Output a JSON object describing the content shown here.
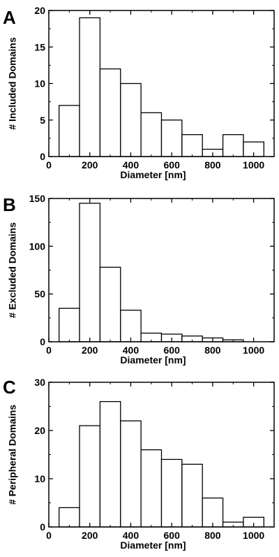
{
  "chart_data": [
    {
      "type": "bar",
      "panel": "A",
      "xlabel": "Diameter [nm]",
      "ylabel": "# Included Domains",
      "xlim": [
        0,
        1100
      ],
      "ylim": [
        0,
        20
      ],
      "xticks": [
        0,
        200,
        400,
        600,
        800,
        1000
      ],
      "yticks": [
        0,
        5,
        10,
        15,
        20
      ],
      "bin_edges": [
        50,
        150,
        250,
        350,
        450,
        550,
        650,
        750,
        850,
        950,
        1050
      ],
      "values": [
        7,
        19,
        12,
        10,
        6,
        5,
        3,
        1,
        3,
        2
      ],
      "grid": false
    },
    {
      "type": "bar",
      "panel": "B",
      "xlabel": "Diameter [nm]",
      "ylabel": "# Excluded Domains",
      "xlim": [
        0,
        1100
      ],
      "ylim": [
        0,
        150
      ],
      "xticks": [
        0,
        200,
        400,
        600,
        800,
        1000
      ],
      "yticks": [
        0,
        50,
        100,
        150
      ],
      "bin_edges": [
        50,
        150,
        250,
        350,
        450,
        550,
        650,
        750,
        850,
        950,
        1050
      ],
      "values": [
        35,
        145,
        78,
        33,
        9,
        8,
        6,
        4,
        2,
        0
      ],
      "grid": false
    },
    {
      "type": "bar",
      "panel": "C",
      "xlabel": "Diameter [nm]",
      "ylabel": "# Peripheral Domains",
      "xlim": [
        0,
        1100
      ],
      "ylim": [
        0,
        30
      ],
      "xticks": [
        0,
        200,
        400,
        600,
        800,
        1000
      ],
      "yticks": [
        0,
        10,
        20,
        30
      ],
      "bin_edges": [
        50,
        150,
        250,
        350,
        450,
        550,
        650,
        750,
        850,
        950,
        1050
      ],
      "values": [
        4,
        21,
        26,
        22,
        16,
        14,
        13,
        6,
        1,
        2
      ],
      "grid": false
    }
  ]
}
